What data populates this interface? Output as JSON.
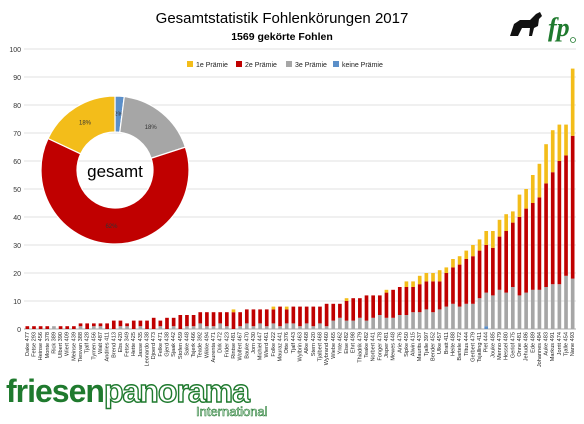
{
  "chart_data": {
    "type": "bar",
    "stacked": true,
    "title": "Gesamtstatistik Fohlenkörungen 2017",
    "subtitle": "1569 gekörte Fohlen",
    "ylim": [
      0,
      100
    ],
    "yticks": [
      0,
      10,
      20,
      30,
      40,
      50,
      60,
      70,
      80,
      90,
      100
    ],
    "grid": true,
    "legend_position": "top-right",
    "colors": {
      "p1": "#f3bd1a",
      "p2": "#c00000",
      "p3": "#a6a6a6",
      "none": "#5b8fc9"
    },
    "categories": [
      "Dake 477",
      "Fetse 293",
      "Heinse 456",
      "Monte 378",
      "Rick 389",
      "Ulbert 390",
      "Wiert 409",
      "Meinse 439",
      "Tiesvan 388",
      "Tjalf 428",
      "Tymen 456",
      "Walt 487",
      "Andries 411",
      "Brend 413",
      "Ebs 420",
      "Fetse 349",
      "Hette 425",
      "Jasse 435",
      "Leonardo 438",
      "Djoerd 473",
      "Felke 471",
      "Gjerd 438",
      "Sjaak 442",
      "Stofen 459",
      "Sake 448",
      "Tsjerk 466",
      "Teade 392",
      "Wikke 494",
      "Aurenta 471",
      "Dirk 472",
      "Frider 423",
      "Rintse 481",
      "Wolfert 467",
      "Bauke 470",
      "Jorn 430",
      "Michiel 447",
      "Wierd 461",
      "Folke 422",
      "Mauraz 441",
      "Otte 376",
      "Tjalf 443",
      "Wylbrin 463",
      "Alke 468",
      "Stern 420",
      "Tjalbert 468",
      "Wybrand 460",
      "Wiebe 465",
      "Ynte 462",
      "Eise 482",
      "Ehrt 498",
      "Thiadrik 479",
      "Teake 482",
      "Norbert 441",
      "Fonger 478",
      "Jisper 481",
      "Mewes 448",
      "Arie 476",
      "Sipke 450",
      "Alwin 415",
      "Maurits 437",
      "Tjalle 397",
      "Bender 452",
      "Ulke 457",
      "Bratt 411",
      "Heite 488",
      "Bartele 472",
      "Tiltus 444",
      "Gerbert 479",
      "Tsjalling 411",
      "Piet 444",
      "Jouke 485",
      "Menno 479",
      "Hessel 480",
      "Gerlof 475",
      "Onne 481",
      "Jehude 486",
      "Ede 489",
      "Johannes 484",
      "Auke 483",
      "Markus 491",
      "Jorrit 474",
      "Tjalle 454",
      "Nane 493"
    ],
    "series": [
      {
        "name": "keine Prämie",
        "values": [
          0,
          0,
          0,
          0,
          0,
          0,
          0,
          0,
          0,
          0,
          0,
          0,
          0,
          0,
          0,
          0,
          0,
          0,
          0,
          0,
          0,
          0,
          0,
          0,
          0,
          0,
          0,
          0,
          0,
          0,
          0,
          0,
          0,
          0,
          0,
          0,
          0,
          0,
          0,
          0,
          0,
          0,
          0,
          0,
          0,
          0,
          0,
          0,
          0,
          0,
          0,
          0,
          0,
          0,
          0,
          0,
          0,
          0,
          0,
          0,
          0,
          0,
          0,
          0,
          0,
          0,
          0,
          0,
          0,
          1,
          0,
          0,
          0,
          0,
          0,
          0,
          0,
          0,
          0,
          0,
          0,
          0,
          0
        ]
      },
      {
        "name": "3e Prämie",
        "values": [
          0,
          0,
          0,
          0,
          1,
          0,
          0,
          0,
          1,
          0,
          1,
          1,
          0,
          0,
          1,
          1,
          0,
          1,
          0,
          0,
          1,
          0,
          1,
          0,
          1,
          1,
          2,
          1,
          1,
          2,
          1,
          0,
          1,
          2,
          1,
          2,
          1,
          2,
          1,
          2,
          2,
          1,
          2,
          1,
          2,
          1,
          3,
          4,
          3,
          3,
          4,
          3,
          4,
          5,
          4,
          4,
          5,
          5,
          6,
          6,
          7,
          6,
          7,
          8,
          9,
          8,
          9,
          9,
          11,
          12,
          12,
          14,
          13,
          15,
          12,
          13,
          14,
          14,
          15,
          16,
          16,
          19,
          18
        ]
      },
      {
        "name": "2e Prämie",
        "values": [
          1,
          1,
          1,
          1,
          0,
          1,
          1,
          1,
          1,
          2,
          1,
          1,
          2,
          3,
          2,
          1,
          3,
          2,
          3,
          4,
          2,
          4,
          3,
          5,
          4,
          4,
          4,
          5,
          5,
          4,
          5,
          6,
          5,
          5,
          6,
          5,
          6,
          5,
          7,
          5,
          6,
          7,
          6,
          7,
          6,
          8,
          6,
          5,
          7,
          8,
          7,
          9,
          8,
          7,
          9,
          10,
          10,
          10,
          9,
          10,
          10,
          11,
          10,
          12,
          13,
          15,
          16,
          17,
          17,
          17,
          17,
          19,
          22,
          23,
          28,
          30,
          31,
          33,
          37,
          40,
          44,
          43,
          51
        ]
      },
      {
        "name": "1e Prämie",
        "values": [
          0,
          0,
          0,
          0,
          0,
          0,
          0,
          0,
          0,
          0,
          0,
          0,
          0,
          0,
          0,
          0,
          0,
          0,
          0,
          0,
          0,
          0,
          0,
          0,
          0,
          0,
          0,
          0,
          0,
          0,
          0,
          1,
          0,
          0,
          0,
          0,
          0,
          1,
          0,
          1,
          0,
          0,
          0,
          0,
          0,
          0,
          0,
          0,
          1,
          0,
          0,
          0,
          0,
          0,
          1,
          0,
          0,
          2,
          2,
          3,
          3,
          3,
          4,
          2,
          3,
          3,
          3,
          4,
          4,
          5,
          6,
          6,
          6,
          4,
          8,
          7,
          10,
          12,
          14,
          15,
          13,
          11,
          24
        ]
      }
    ],
    "donut": {
      "label": "gesamt",
      "slices": [
        {
          "name": "keine Prämie",
          "value": 2,
          "label": "2%"
        },
        {
          "name": "3e Prämie",
          "value": 18,
          "label": "18%"
        },
        {
          "name": "2e Prämie",
          "value": 62,
          "label": "62%"
        },
        {
          "name": "1e Prämie",
          "value": 18,
          "label": "18%"
        }
      ]
    }
  },
  "branding": {
    "name_part1": "friesen",
    "name_part2": "panorama",
    "tagline": "International",
    "logo_letters": "fp"
  }
}
